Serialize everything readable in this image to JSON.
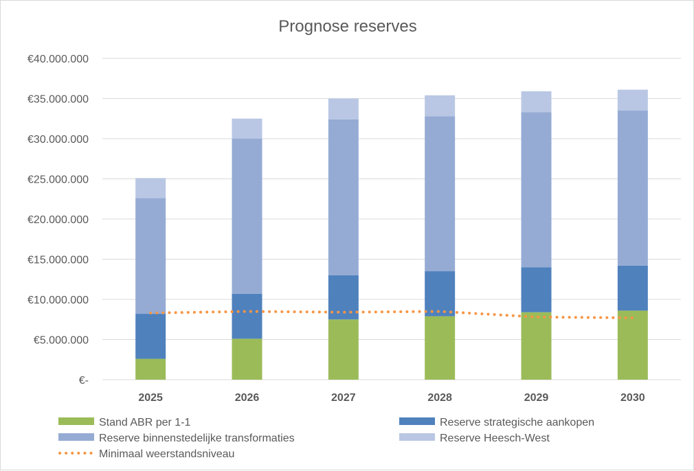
{
  "chart_data": {
    "type": "bar",
    "stacked": true,
    "title": "Prognose reserves",
    "categories": [
      "2025",
      "2026",
      "2027",
      "2028",
      "2029",
      "2030"
    ],
    "ylim": [
      0,
      40000000
    ],
    "ytick_values": [
      0,
      5000000,
      10000000,
      15000000,
      20000000,
      25000000,
      30000000,
      35000000,
      40000000
    ],
    "ytick_labels": [
      "€-",
      "€5.000.000",
      "€10.000.000",
      "€15.000.000",
      "€20.000.000",
      "€25.000.000",
      "€30.000.000",
      "€35.000.000",
      "€40.000.000"
    ],
    "grid": true,
    "legend_position": "bottom",
    "series": [
      {
        "name": "Stand ABR per 1-1",
        "color": "#9bbb59",
        "values": [
          2600000,
          5100000,
          7500000,
          7900000,
          8400000,
          8600000
        ]
      },
      {
        "name": "Reserve strategische aankopen",
        "color": "#4f81bd",
        "values": [
          5600000,
          5600000,
          5500000,
          5600000,
          5600000,
          5600000
        ]
      },
      {
        "name": "Reserve binnenstedelijke transformaties",
        "color": "#95abd4",
        "values": [
          14400000,
          19300000,
          19400000,
          19300000,
          19300000,
          19300000
        ]
      },
      {
        "name": "Reserve Heesch-West",
        "color": "#b9c7e4",
        "values": [
          2500000,
          2500000,
          2600000,
          2600000,
          2600000,
          2600000
        ]
      }
    ],
    "line_series": {
      "name": "Minimaal weerstandsniveau",
      "color": "#f79646",
      "style": "dotted",
      "values": [
        8300000,
        8500000,
        8400000,
        8500000,
        7800000,
        7700000
      ]
    }
  }
}
